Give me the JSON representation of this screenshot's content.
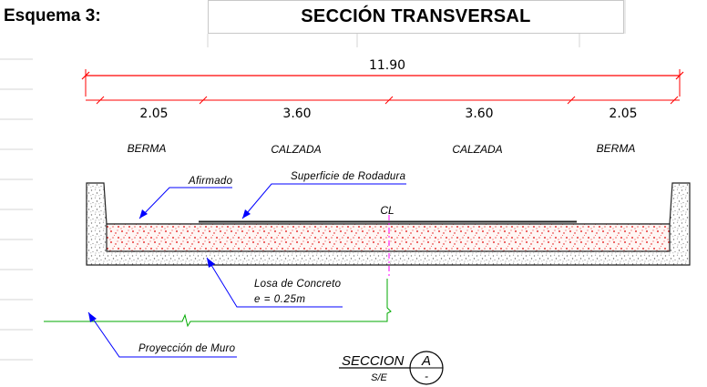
{
  "header": {
    "sheet_label": "Esquema 3:",
    "title": "SECCIÓN TRANSVERSAL"
  },
  "dimensions": {
    "total": "11.90",
    "segments": [
      "2.05",
      "3.60",
      "3.60",
      "2.05"
    ]
  },
  "zones": [
    "BERMA",
    "CALZADA",
    "CALZADA",
    "BERMA"
  ],
  "callouts": {
    "afirmado": "Afirmado",
    "superficie": "Superficie de Rodadura",
    "cl": "CL",
    "losa_line1": "Losa de Concreto",
    "losa_line2": "e = 0.25m",
    "proyeccion": "Proyección de Muro"
  },
  "section_tag": {
    "name": "SECCION",
    "scale": "S/E",
    "letter": "A",
    "sheet": "-"
  },
  "colors": {
    "dimension_line": "#ff0000",
    "leader": "#0000ff",
    "ground_line": "#00aa00",
    "centerline": "#ff00ff",
    "speckle": "#e00000"
  }
}
